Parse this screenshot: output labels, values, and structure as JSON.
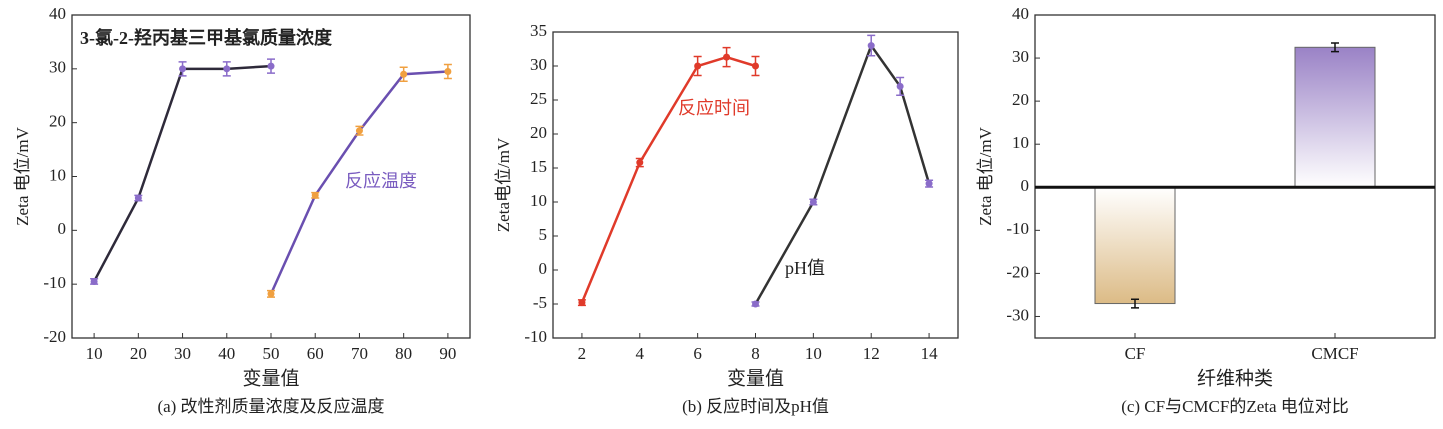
{
  "chart_data": [
    {
      "type": "line",
      "xlabel": "变量值",
      "ylabel": "Zeta 电位/mV",
      "caption": "(a) 改性剂质量浓度及反应温度",
      "xlim": [
        5,
        95
      ],
      "ylim": [
        -20,
        40
      ],
      "xticks": [
        10,
        20,
        30,
        40,
        50,
        60,
        70,
        80,
        90
      ],
      "yticks": [
        -20,
        -10,
        0,
        10,
        20,
        30,
        40
      ],
      "series": [
        {
          "name": "3-氯-2-羟丙基三甲基氯质量浓度",
          "color": "#2e2a3a",
          "marker_color": "#8a6cc9",
          "x": [
            10,
            20,
            30,
            40,
            50
          ],
          "values": [
            -9.5,
            6,
            30,
            30,
            30.5
          ],
          "errors": [
            0.5,
            0.5,
            1.3,
            1.3,
            1.3
          ]
        },
        {
          "name": "反应温度",
          "color": "#6a4fb0",
          "marker_color": "#f0a040",
          "x": [
            50,
            60,
            70,
            80,
            90
          ],
          "values": [
            -11.8,
            6.5,
            18.5,
            29,
            29.5
          ],
          "errors": [
            0.6,
            0.5,
            0.8,
            1.3,
            1.3
          ]
        }
      ]
    },
    {
      "type": "line",
      "xlabel": "变量值",
      "ylabel": "Zeta电位/mV",
      "caption": "(b) 反应时间及pH值",
      "xlim": [
        1,
        15
      ],
      "ylim": [
        -10,
        35
      ],
      "xticks": [
        2,
        4,
        6,
        8,
        10,
        12,
        14
      ],
      "yticks": [
        -10,
        -5,
        0,
        5,
        10,
        15,
        20,
        25,
        30,
        35
      ],
      "series": [
        {
          "name": "反应时间",
          "color": "#e03a2a",
          "marker_color": "#e03a2a",
          "x": [
            2,
            4,
            6,
            7,
            8
          ],
          "values": [
            -4.8,
            15.8,
            30,
            31.3,
            30
          ],
          "errors": [
            0.4,
            0.6,
            1.4,
            1.4,
            1.4
          ]
        },
        {
          "name": "pH值",
          "color": "#333333",
          "marker_color": "#8a6cc9",
          "x": [
            8,
            10,
            12,
            13,
            14
          ],
          "values": [
            -5,
            10,
            33,
            27,
            12.7
          ],
          "errors": [
            0.3,
            0.4,
            1.5,
            1.3,
            0.5
          ]
        }
      ]
    },
    {
      "type": "bar",
      "xlabel": "纤维种类",
      "ylabel": "Zeta 电位/mV",
      "caption": "(c) CF与CMCF的Zeta 电位对比",
      "ylim": [
        -35,
        40
      ],
      "yticks": [
        -30,
        -20,
        -10,
        0,
        10,
        20,
        30,
        40
      ],
      "categories": [
        "CF",
        "CMCF"
      ],
      "values": [
        -27,
        32.5
      ],
      "errors": [
        1,
        1
      ],
      "colors": [
        "#dcbb86",
        "#9a82c6"
      ]
    }
  ]
}
